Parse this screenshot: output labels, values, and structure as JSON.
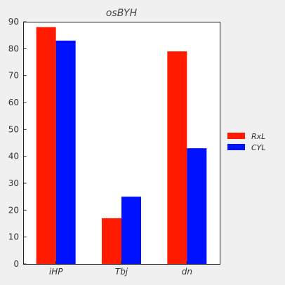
{
  "chart_data": {
    "type": "bar",
    "title": "osBYH",
    "xlabel": "",
    "ylabel": "",
    "categories": [
      "iHP",
      "Tbj",
      "dn"
    ],
    "series": [
      {
        "name": "RxL",
        "values": [
          88,
          17,
          79
        ],
        "color": "#ff1a00"
      },
      {
        "name": "CYL",
        "values": [
          83,
          25,
          43
        ],
        "color": "#0011ff"
      }
    ],
    "ylim": [
      0,
      90
    ],
    "yticks": [
      0,
      10,
      20,
      30,
      40,
      50,
      60,
      70,
      80,
      90
    ],
    "grid": false,
    "legend_position": "right",
    "background": "#f0f0f0",
    "plot_background": "#ffffff"
  }
}
